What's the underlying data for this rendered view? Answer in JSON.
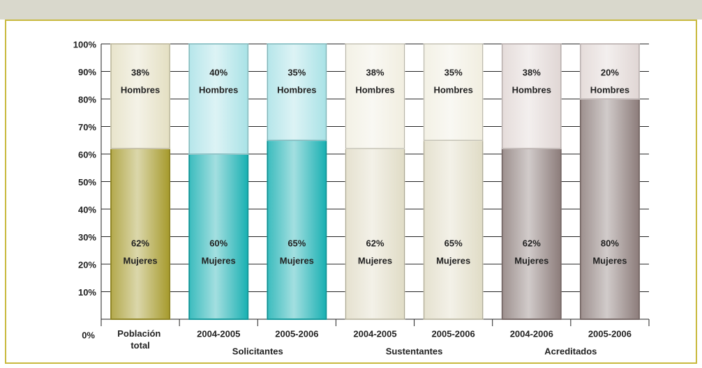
{
  "chart_data": {
    "type": "stacked-bar",
    "categories": [
      "Población total",
      "2004-2005",
      "2005-2006",
      "2004-2005",
      "2005-2006",
      "2004-2006",
      "2005-2006"
    ],
    "groups": [
      "Solicitantes",
      "Sustentantes",
      "Acreditados"
    ],
    "series": [
      {
        "name": "Mujeres",
        "values": [
          62,
          60,
          65,
          62,
          65,
          62,
          80
        ],
        "value_labels": [
          "62%",
          "60%",
          "65%",
          "62%",
          "65%",
          "62%",
          "80%"
        ],
        "colors": [
          "#a69a2c",
          "#19b0b2",
          "#19b0b2",
          "#e0dcc6",
          "#e0dcc6",
          "#8c7c7a",
          "#8c7c7a"
        ]
      },
      {
        "name": "Hombres",
        "values": [
          38,
          40,
          35,
          38,
          35,
          38,
          20
        ],
        "value_labels": [
          "38%",
          "40%",
          "35%",
          "38%",
          "35%",
          "38%",
          "20%"
        ],
        "colors": [
          "#e4dfc2",
          "#a9e2e6",
          "#a9e2e6",
          "#f1eee0",
          "#f1eee0",
          "#e0d6d4",
          "#e0d6d4"
        ]
      }
    ],
    "ylim": [
      0,
      100
    ],
    "yticks": [
      {
        "value": 0,
        "label": "0%"
      },
      {
        "value": 10,
        "label": "10%"
      },
      {
        "value": 20,
        "label": "20%"
      },
      {
        "value": 30,
        "label": "30%"
      },
      {
        "value": 40,
        "label": "40%"
      },
      {
        "value": 50,
        "label": "50%"
      },
      {
        "value": 60,
        "label": "60%"
      },
      {
        "value": 70,
        "label": "70%"
      },
      {
        "value": 80,
        "label": "80%"
      },
      {
        "value": 90,
        "label": "90%"
      },
      {
        "value": 100,
        "label": "100%"
      }
    ],
    "grid": true
  }
}
